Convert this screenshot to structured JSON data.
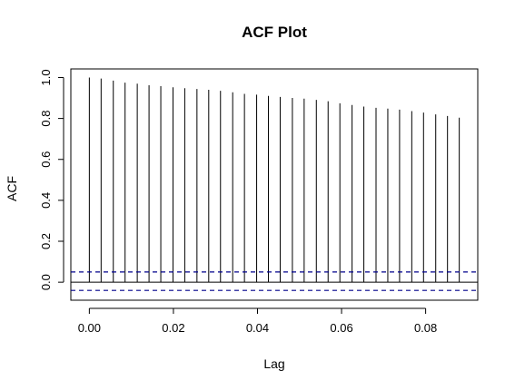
{
  "chart_data": {
    "type": "bar",
    "title": "ACF Plot",
    "xlabel": "Lag",
    "ylabel": "ACF",
    "xlim": [
      -0.0044,
      0.0924
    ],
    "ylim": [
      -0.088,
      1.042
    ],
    "x_ticks": [
      0.0,
      0.02,
      0.04,
      0.06,
      0.08
    ],
    "x_tick_labels": [
      "0.00",
      "0.02",
      "0.04",
      "0.06",
      "0.08"
    ],
    "y_ticks": [
      0.0,
      0.2,
      0.4,
      0.6,
      0.8,
      1.0
    ],
    "y_tick_labels": [
      "0.0",
      "0.2",
      "0.4",
      "0.6",
      "0.8",
      "1.0"
    ],
    "confidence_band": [
      0.05,
      -0.04
    ],
    "zero_line": 0,
    "grid": false,
    "colors": {
      "lines": "#000000",
      "confidence": "#00008b"
    },
    "lags": [
      0.0,
      0.0028,
      0.0057,
      0.0085,
      0.0114,
      0.0142,
      0.017,
      0.0199,
      0.0227,
      0.0256,
      0.0284,
      0.0312,
      0.0341,
      0.0369,
      0.0398,
      0.0426,
      0.0454,
      0.0483,
      0.0511,
      0.054,
      0.0568,
      0.0596,
      0.0625,
      0.0653,
      0.0682,
      0.071,
      0.0738,
      0.0767,
      0.0795,
      0.0824,
      0.0852,
      0.088
    ],
    "values": [
      1.0,
      0.995,
      0.985,
      0.975,
      0.97,
      0.962,
      0.958,
      0.952,
      0.948,
      0.944,
      0.94,
      0.935,
      0.928,
      0.92,
      0.916,
      0.91,
      0.905,
      0.9,
      0.897,
      0.891,
      0.884,
      0.874,
      0.866,
      0.858,
      0.852,
      0.848,
      0.843,
      0.836,
      0.829,
      0.82,
      0.812,
      0.804
    ]
  }
}
